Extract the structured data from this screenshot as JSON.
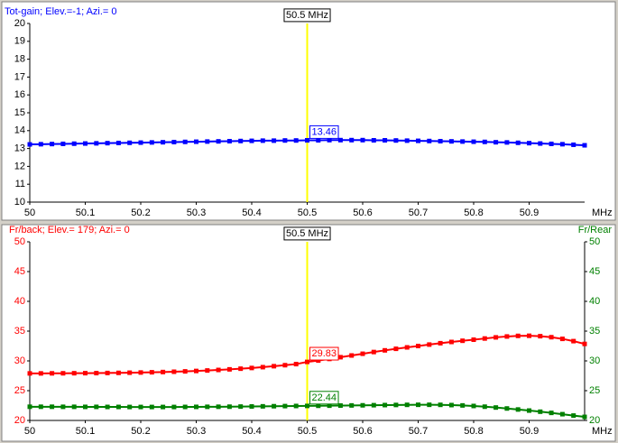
{
  "chart_data": [
    {
      "type": "line",
      "xlabel": "MHz",
      "x": [
        50,
        50.02,
        50.04,
        50.06,
        50.08,
        50.1,
        50.12,
        50.14,
        50.16,
        50.18,
        50.2,
        50.22,
        50.24,
        50.26,
        50.28,
        50.3,
        50.32,
        50.34,
        50.36,
        50.38,
        50.4,
        50.42,
        50.44,
        50.46,
        50.48,
        50.5,
        50.52,
        50.54,
        50.56,
        50.58,
        50.6,
        50.62,
        50.64,
        50.66,
        50.68,
        50.7,
        50.72,
        50.74,
        50.76,
        50.78,
        50.8,
        50.82,
        50.84,
        50.86,
        50.88,
        50.9,
        50.92,
        50.94,
        50.96,
        50.98,
        51
      ],
      "xlim": [
        50,
        51
      ],
      "xticks": [
        50,
        50.1,
        50.2,
        50.3,
        50.4,
        50.5,
        50.6,
        50.7,
        50.8,
        50.9
      ],
      "ylim": [
        10,
        20
      ],
      "yticks": [
        10,
        11,
        12,
        13,
        14,
        15,
        16,
        17,
        18,
        19,
        20
      ],
      "cursor": {
        "x": 50.5,
        "label": "50.5 MHz"
      },
      "series": [
        {
          "name": "Tot-gain; Elev.=-1; Azi.= 0",
          "color": "#0000ff",
          "values": [
            13.23,
            13.24,
            13.25,
            13.26,
            13.27,
            13.28,
            13.29,
            13.3,
            13.31,
            13.32,
            13.33,
            13.34,
            13.35,
            13.36,
            13.37,
            13.38,
            13.39,
            13.4,
            13.41,
            13.42,
            13.43,
            13.44,
            13.44,
            13.45,
            13.45,
            13.46,
            13.46,
            13.47,
            13.47,
            13.47,
            13.47,
            13.46,
            13.46,
            13.45,
            13.44,
            13.43,
            13.42,
            13.41,
            13.4,
            13.39,
            13.38,
            13.37,
            13.35,
            13.34,
            13.32,
            13.3,
            13.28,
            13.26,
            13.24,
            13.21,
            13.18
          ]
        }
      ]
    },
    {
      "type": "line",
      "xlabel": "MHz",
      "x": [
        50,
        50.02,
        50.04,
        50.06,
        50.08,
        50.1,
        50.12,
        50.14,
        50.16,
        50.18,
        50.2,
        50.22,
        50.24,
        50.26,
        50.28,
        50.3,
        50.32,
        50.34,
        50.36,
        50.38,
        50.4,
        50.42,
        50.44,
        50.46,
        50.48,
        50.5,
        50.52,
        50.54,
        50.56,
        50.58,
        50.6,
        50.62,
        50.64,
        50.66,
        50.68,
        50.7,
        50.72,
        50.74,
        50.76,
        50.78,
        50.8,
        50.82,
        50.84,
        50.86,
        50.88,
        50.9,
        50.92,
        50.94,
        50.96,
        50.98,
        51
      ],
      "xlim": [
        50,
        51
      ],
      "xticks": [
        50,
        50.1,
        50.2,
        50.3,
        50.4,
        50.5,
        50.6,
        50.7,
        50.8,
        50.9
      ],
      "ylim": [
        20,
        50
      ],
      "yticks": [
        20,
        25,
        30,
        35,
        40,
        45,
        50
      ],
      "y2lim": [
        20,
        50
      ],
      "y2ticks": [
        20,
        25,
        30,
        35,
        40,
        45,
        50
      ],
      "cursor": {
        "x": 50.5,
        "label": "50.5 MHz"
      },
      "series": [
        {
          "name": "Fr/back; Elev.= 179; Azi.= 0",
          "color": "#ff0000",
          "values": [
            27.9,
            27.9,
            27.91,
            27.92,
            27.93,
            27.94,
            27.95,
            27.97,
            27.99,
            28.02,
            28.05,
            28.09,
            28.13,
            28.18,
            28.24,
            28.31,
            28.39,
            28.48,
            28.58,
            28.69,
            28.81,
            28.95,
            29.11,
            29.28,
            29.46,
            29.83,
            30.06,
            30.33,
            30.62,
            30.91,
            31.2,
            31.49,
            31.77,
            32.03,
            32.27,
            32.5,
            32.74,
            32.97,
            33.18,
            33.38,
            33.56,
            33.76,
            33.95,
            34.1,
            34.2,
            34.22,
            34.15,
            33.98,
            33.7,
            33.32,
            32.85
          ]
        },
        {
          "name": "Fr/Rear",
          "color": "#008000",
          "axis": "y2",
          "values": [
            22.3,
            22.3,
            22.3,
            22.29,
            22.29,
            22.28,
            22.28,
            22.27,
            22.27,
            22.26,
            22.26,
            22.26,
            22.26,
            22.26,
            22.27,
            22.28,
            22.29,
            22.3,
            22.31,
            22.33,
            22.35,
            22.37,
            22.39,
            22.41,
            22.43,
            22.44,
            22.46,
            22.48,
            22.5,
            22.52,
            22.54,
            22.56,
            22.58,
            22.6,
            22.62,
            22.63,
            22.63,
            22.62,
            22.58,
            22.52,
            22.43,
            22.31,
            22.17,
            22.01,
            21.84,
            21.66,
            21.47,
            21.27,
            21.05,
            20.82,
            20.6
          ]
        }
      ]
    }
  ]
}
